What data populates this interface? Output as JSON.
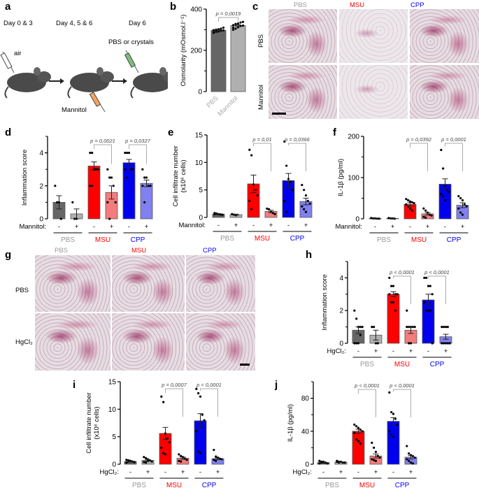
{
  "panel_labels": {
    "a": "a",
    "b": "b",
    "c": "c",
    "d": "d",
    "e": "e",
    "f": "f",
    "g": "g",
    "h": "h",
    "i": "i",
    "j": "j"
  },
  "panel_a": {
    "timeline": [
      "Day 0 & 3",
      "Day 4, 5 & 6",
      "Day 6"
    ],
    "air_label": "air",
    "crystals_label": "PBS or crystals",
    "mannitol_label": "Mannitol",
    "syringe_colors": {
      "air": "#ffffff",
      "mannitol": "#f4a460",
      "crystals": "#7fbf7f"
    }
  },
  "panel_c": {
    "columns": [
      {
        "name": "PBS",
        "color": "#999999"
      },
      {
        "name": "MSU",
        "color": "#ff0000"
      },
      {
        "name": "CPP",
        "color": "#0000ff"
      }
    ],
    "rows": [
      "PBS",
      "Mannitol"
    ]
  },
  "panel_g": {
    "columns": [
      {
        "name": "PBS",
        "color": "#999999"
      },
      {
        "name": "MSU",
        "color": "#ff0000"
      },
      {
        "name": "CPP",
        "color": "#0000ff"
      }
    ],
    "rows": [
      "PBS",
      "HgCl₂"
    ]
  },
  "chart_data": [
    {
      "id": "b",
      "type": "bar",
      "ylabel": [
        "Osmolarity (mOsmol.l⁻¹)"
      ],
      "ylim": [
        0,
        400
      ],
      "yticks": [
        0,
        200,
        400
      ],
      "yminor": [
        100,
        300
      ],
      "categories": [
        "PBS",
        "Mannitol"
      ],
      "values": [
        297,
        320
      ],
      "errors": [
        3,
        4
      ],
      "points": [
        [
          285,
          290,
          292,
          295,
          297,
          298,
          300,
          302,
          305,
          310,
          288,
          300
        ],
        [
          300,
          305,
          312,
          318,
          320,
          322,
          325,
          330,
          335,
          338,
          310,
          328
        ]
      ],
      "colors": [
        "#666666",
        "#b0b0b0"
      ],
      "category_label_color": "#aaaaaa",
      "brackets": [
        {
          "from": 0,
          "to": 1,
          "label": "p = 0,0019"
        }
      ]
    },
    {
      "id": "d",
      "type": "bar",
      "ylabel": [
        "Inflammation score"
      ],
      "ylim": [
        0,
        5
      ],
      "yticks": [
        0,
        2,
        4
      ],
      "yminor": [
        1,
        3,
        5
      ],
      "values": [
        1.0,
        0.3,
        3.2,
        1.6,
        3.4,
        2.15
      ],
      "errors": [
        0.4,
        0.3,
        0.25,
        0.4,
        0.2,
        0.2
      ],
      "points": [
        [
          2,
          1,
          1,
          0
        ],
        [
          1,
          0,
          0
        ],
        [
          4,
          4,
          3,
          3,
          3,
          2,
          2
        ],
        [
          3,
          2.5,
          2.5,
          2,
          1,
          1,
          0
        ],
        [
          4,
          4,
          4,
          3,
          3,
          3,
          2.5
        ],
        [
          3,
          2.5,
          2.5,
          2,
          2,
          2,
          1
        ]
      ],
      "colors": [
        "#666666",
        "#b0b0b0",
        "#ff0000",
        "#f47c7c",
        "#0000ee",
        "#8080f0"
      ],
      "treatment_label": "Mannitol:",
      "signs": [
        "-",
        "+",
        "-",
        "+",
        "-",
        "+"
      ],
      "groups": [
        {
          "name": "PBS",
          "color": "#999999"
        },
        {
          "name": "MSU",
          "color": "#ff0000"
        },
        {
          "name": "CPP",
          "color": "#0000ff"
        }
      ],
      "brackets": [
        {
          "from": 2,
          "to": 3,
          "label": "p = 0,0021"
        },
        {
          "from": 4,
          "to": 5,
          "label": "p = 0,0327"
        }
      ]
    },
    {
      "id": "e",
      "type": "bar",
      "ylabel": [
        "Cell infiltrate number",
        "(x10⁶ cells)"
      ],
      "ylim": [
        0,
        15
      ],
      "yticks": [
        0,
        5,
        10,
        15
      ],
      "yminor": [],
      "values": [
        0.6,
        0.5,
        6.1,
        1.1,
        6.7,
        2.9
      ],
      "errors": [
        0.1,
        0.1,
        1.6,
        0.2,
        1.3,
        0.6
      ],
      "points": [
        [
          0.8,
          0.7,
          0.6,
          0.5,
          0.5,
          0.6
        ],
        [
          0.6,
          0.5,
          0.4
        ],
        [
          12.3,
          11.3,
          6,
          5,
          4,
          3,
          1.5
        ],
        [
          1.6,
          1.5,
          1,
          0.8,
          0.6
        ],
        [
          13.8,
          9.4,
          7,
          6.5,
          5,
          3,
          1
        ],
        [
          5.9,
          5,
          4,
          3,
          2.5,
          2,
          1.5,
          1
        ]
      ],
      "colors": [
        "#666666",
        "#b0b0b0",
        "#ff0000",
        "#f47c7c",
        "#0000ee",
        "#8080f0"
      ],
      "treatment_label": "Mannitol:",
      "signs": [
        "-",
        "+",
        "-",
        "+",
        "-",
        "+"
      ],
      "groups": [
        {
          "name": "PBS",
          "color": "#999999"
        },
        {
          "name": "MSU",
          "color": "#ff0000"
        },
        {
          "name": "CPP",
          "color": "#0000ff"
        }
      ],
      "brackets": [
        {
          "from": 2,
          "to": 3,
          "label": "p = 0,01"
        },
        {
          "from": 4,
          "to": 5,
          "label": "p = 0,0366"
        }
      ]
    },
    {
      "id": "f",
      "type": "bar",
      "ylabel": [
        "IL-1β (pg/ml)"
      ],
      "ylim": [
        0,
        200
      ],
      "yticks": [
        0,
        100,
        200
      ],
      "yminor": [
        50,
        150
      ],
      "values": [
        1,
        1,
        35,
        12,
        84,
        33
      ],
      "errors": [
        0.5,
        0.5,
        4,
        3,
        13,
        6
      ],
      "points": [
        [
          2,
          1,
          1,
          0.5,
          0.5
        ],
        [
          2,
          1,
          1,
          0.5
        ],
        [
          48,
          45,
          42,
          40,
          38,
          35,
          30,
          25,
          20
        ],
        [
          25,
          20,
          15,
          10,
          8,
          5,
          3
        ],
        [
          167,
          122,
          80,
          70,
          65,
          60,
          55,
          45
        ],
        [
          55,
          50,
          45,
          35,
          30,
          25,
          15,
          10
        ]
      ],
      "colors": [
        "#666666",
        "#b0b0b0",
        "#ff0000",
        "#f47c7c",
        "#0000ee",
        "#8080f0"
      ],
      "treatment_label": "Mannitol:",
      "signs": [
        "-",
        "+",
        "-",
        "+",
        "-",
        "+"
      ],
      "groups": [
        {
          "name": "PBS",
          "color": "#999999"
        },
        {
          "name": "MSU",
          "color": "#ff0000"
        },
        {
          "name": "CPP",
          "color": "#0000ff"
        }
      ],
      "brackets": [
        {
          "from": 2,
          "to": 3,
          "label": "p = 0,0392"
        },
        {
          "from": 4,
          "to": 5,
          "label": "p = 0,0001"
        }
      ]
    },
    {
      "id": "h",
      "type": "bar",
      "ylabel": [
        "Inflammation score"
      ],
      "ylim": [
        0,
        5
      ],
      "yticks": [
        0,
        2,
        4
      ],
      "yminor": [
        1,
        3,
        5
      ],
      "values": [
        0.8,
        0.5,
        3.0,
        0.8,
        2.65,
        0.4
      ],
      "errors": [
        0.2,
        0.3,
        0.15,
        0.2,
        0.35,
        0.15
      ],
      "points": [
        [
          2,
          1.5,
          1,
          1,
          1,
          0,
          0,
          0,
          0.5
        ],
        [
          1,
          1,
          0,
          0
        ],
        [
          4,
          3.5,
          3.5,
          3,
          3,
          3,
          2.5,
          2.5,
          2
        ],
        [
          2,
          1,
          1,
          1,
          1,
          1,
          0,
          0
        ],
        [
          4,
          4,
          3.5,
          3.5,
          3,
          2.5,
          2,
          2,
          2,
          0
        ],
        [
          1,
          1,
          1,
          1,
          0,
          0,
          0,
          0,
          0,
          0
        ]
      ],
      "colors": [
        "#666666",
        "#b0b0b0",
        "#ff0000",
        "#f47c7c",
        "#0000ee",
        "#8080f0"
      ],
      "treatment_label": "HgCl₂:",
      "signs": [
        "-",
        "+",
        "-",
        "+",
        "-",
        "+"
      ],
      "groups": [
        {
          "name": "PBS",
          "color": "#999999"
        },
        {
          "name": "MSU",
          "color": "#ff0000"
        },
        {
          "name": "CPP",
          "color": "#0000ff"
        }
      ],
      "brackets": [
        {
          "from": 2,
          "to": 3,
          "label": "p < 0,0001"
        },
        {
          "from": 4,
          "to": 5,
          "label": "p < 0,0001"
        }
      ]
    },
    {
      "id": "i",
      "type": "bar",
      "ylabel": [
        "Cell infiltrate number",
        "(x10⁶ cells)"
      ],
      "ylim": [
        0,
        15
      ],
      "yticks": [
        0,
        5,
        10,
        15
      ],
      "yminor": [],
      "values": [
        0.5,
        0.7,
        5.6,
        1.1,
        7.9,
        1.0
      ],
      "errors": [
        0.1,
        0.15,
        1.1,
        0.2,
        1.3,
        0.15
      ],
      "points": [
        [
          0.8,
          0.7,
          0.6,
          0.5,
          0.4,
          0.3,
          0.5,
          0.6
        ],
        [
          1.3,
          1.1,
          0.9,
          0.7,
          0.5,
          0.4,
          0.3,
          0.6
        ],
        [
          12.3,
          11.3,
          5.6,
          4.7,
          4,
          3,
          2,
          1.8
        ],
        [
          1.8,
          1.5,
          1.3,
          1,
          0.8,
          0.6,
          0.5
        ],
        [
          13.7,
          12.9,
          12.3,
          9,
          8,
          6,
          2.3,
          2
        ],
        [
          2.6,
          1.4,
          1.2,
          1,
          0.9,
          0.8,
          0.6
        ]
      ],
      "colors": [
        "#666666",
        "#b0b0b0",
        "#ff0000",
        "#f47c7c",
        "#0000ee",
        "#8080f0"
      ],
      "treatment_label": "HgCl₂:",
      "signs": [
        "-",
        "+",
        "-",
        "+",
        "-",
        "+"
      ],
      "groups": [
        {
          "name": "PBS",
          "color": "#999999"
        },
        {
          "name": "MSU",
          "color": "#ff0000"
        },
        {
          "name": "CPP",
          "color": "#0000ff"
        }
      ],
      "brackets": [
        {
          "from": 2,
          "to": 3,
          "label": "p = 0,0007"
        },
        {
          "from": 4,
          "to": 5,
          "label": "p < 0,0001"
        }
      ]
    },
    {
      "id": "j",
      "type": "bar",
      "ylabel": [
        "IL-1β (pg/ml)"
      ],
      "ylim": [
        0,
        100
      ],
      "yticks": [
        0,
        40,
        80
      ],
      "yminor": [
        20,
        60,
        100
      ],
      "values": [
        2,
        2.5,
        40,
        10,
        52,
        8.5
      ],
      "errors": [
        0.5,
        0.5,
        2.5,
        2.5,
        4.5,
        2
      ],
      "points": [
        [
          4,
          3,
          2,
          2,
          1,
          1,
          2,
          3
        ],
        [
          4,
          3,
          3,
          2,
          2,
          3,
          2
        ],
        [
          48,
          46,
          44,
          42,
          40,
          38,
          30,
          28,
          25
        ],
        [
          26,
          20,
          15,
          10,
          8,
          6,
          5,
          4
        ],
        [
          87,
          63,
          61,
          55,
          48,
          40,
          36,
          33
        ],
        [
          22,
          13,
          11,
          10,
          8,
          6,
          4,
          2,
          1
        ]
      ],
      "colors": [
        "#666666",
        "#b0b0b0",
        "#ff0000",
        "#f47c7c",
        "#0000ee",
        "#8080f0"
      ],
      "treatment_label": "HgCl₂:",
      "signs": [
        "-",
        "+",
        "-",
        "+",
        "-",
        "+"
      ],
      "groups": [
        {
          "name": "PBS",
          "color": "#999999"
        },
        {
          "name": "MSU",
          "color": "#ff0000"
        },
        {
          "name": "CPP",
          "color": "#0000ff"
        }
      ],
      "brackets": [
        {
          "from": 2,
          "to": 3,
          "label": "p < 0,0001"
        },
        {
          "from": 4,
          "to": 5,
          "label": "p < 0,0001"
        }
      ]
    }
  ]
}
